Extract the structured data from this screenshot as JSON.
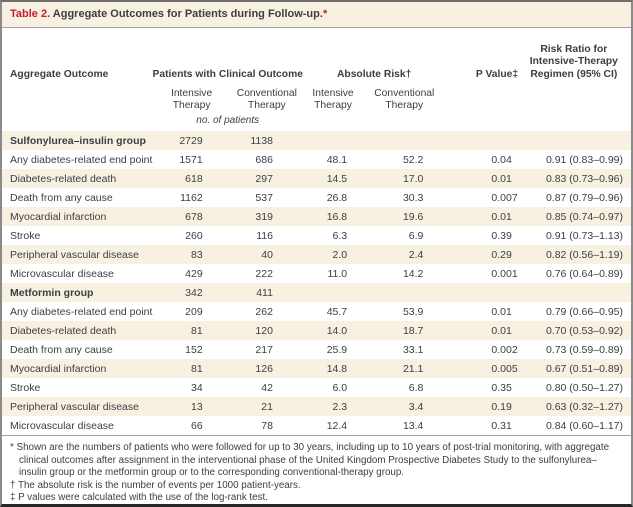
{
  "colors": {
    "cream": "#f8f1e1",
    "text": "#3b3e42",
    "accent-red": "#bf2032",
    "border-gray": "#8a8a8a",
    "rule-gray": "#a0a0a0",
    "border-dark": "#262626"
  },
  "table": {
    "title_label": "Table 2.",
    "title_text": " Aggregate Outcomes for Patients during Follow-up.",
    "title_marker": "*",
    "columns": {
      "outcome": "Aggregate Outcome",
      "patients_group": "Patients with Clinical Outcome",
      "risk_group": "Absolute Risk†",
      "pvalue": "P Value‡",
      "risk_ratio": "Risk Ratio for Intensive-Therapy Regimen (95% CI)",
      "sub_intensive": "Intensive Therapy",
      "sub_conventional": "Conventional Therapy",
      "units_note": "no. of patients"
    },
    "rows": [
      {
        "label": "Sulfonylurea–insulin group",
        "group": true,
        "patients_intensive": "2729",
        "patients_conventional": "1138",
        "risk_intensive": "",
        "risk_conventional": "",
        "p_value": "",
        "risk_ratio": ""
      },
      {
        "label": "Any diabetes-related end point",
        "group": false,
        "patients_intensive": "1571",
        "patients_conventional": "686",
        "risk_intensive": "48.1",
        "risk_conventional": "52.2",
        "p_value": "0.04",
        "risk_ratio": "0.91 (0.83–0.99)"
      },
      {
        "label": "Diabetes-related death",
        "group": false,
        "patients_intensive": "618",
        "patients_conventional": "297",
        "risk_intensive": "14.5",
        "risk_conventional": "17.0",
        "p_value": "0.01",
        "risk_ratio": "0.83 (0.73–0.96)"
      },
      {
        "label": "Death from any cause",
        "group": false,
        "patients_intensive": "1162",
        "patients_conventional": "537",
        "risk_intensive": "26.8",
        "risk_conventional": "30.3",
        "p_value": "0.007",
        "risk_ratio": "0.87 (0.79–0.96)"
      },
      {
        "label": "Myocardial infarction",
        "group": false,
        "patients_intensive": "678",
        "patients_conventional": "319",
        "risk_intensive": "16.8",
        "risk_conventional": "19.6",
        "p_value": "0.01",
        "risk_ratio": "0.85 (0.74–0.97)"
      },
      {
        "label": "Stroke",
        "group": false,
        "patients_intensive": "260",
        "patients_conventional": "116",
        "risk_intensive": "6.3",
        "risk_conventional": "6.9",
        "p_value": "0.39",
        "risk_ratio": "0.91 (0.73–1.13)"
      },
      {
        "label": "Peripheral vascular disease",
        "group": false,
        "patients_intensive": "83",
        "patients_conventional": "40",
        "risk_intensive": "2.0",
        "risk_conventional": "2.4",
        "p_value": "0.29",
        "risk_ratio": "0.82 (0.56–1.19)"
      },
      {
        "label": "Microvascular disease",
        "group": false,
        "patients_intensive": "429",
        "patients_conventional": "222",
        "risk_intensive": "11.0",
        "risk_conventional": "14.2",
        "p_value": "0.001",
        "risk_ratio": "0.76 (0.64–0.89)"
      },
      {
        "label": "Metformin group",
        "group": true,
        "patients_intensive": "342",
        "patients_conventional": "411",
        "risk_intensive": "",
        "risk_conventional": "",
        "p_value": "",
        "risk_ratio": ""
      },
      {
        "label": "Any diabetes-related end point",
        "group": false,
        "patients_intensive": "209",
        "patients_conventional": "262",
        "risk_intensive": "45.7",
        "risk_conventional": "53.9",
        "p_value": "0.01",
        "risk_ratio": "0.79 (0.66–0.95)"
      },
      {
        "label": "Diabetes-related death",
        "group": false,
        "patients_intensive": "81",
        "patients_conventional": "120",
        "risk_intensive": "14.0",
        "risk_conventional": "18.7",
        "p_value": "0.01",
        "risk_ratio": "0.70 (0.53–0.92)"
      },
      {
        "label": "Death from any cause",
        "group": false,
        "patients_intensive": "152",
        "patients_conventional": "217",
        "risk_intensive": "25.9",
        "risk_conventional": "33.1",
        "p_value": "0.002",
        "risk_ratio": "0.73 (0.59–0.89)"
      },
      {
        "label": "Myocardial infarction",
        "group": false,
        "patients_intensive": "81",
        "patients_conventional": "126",
        "risk_intensive": "14.8",
        "risk_conventional": "21.1",
        "p_value": "0.005",
        "risk_ratio": "0.67 (0.51–0.89)"
      },
      {
        "label": "Stroke",
        "group": false,
        "patients_intensive": "34",
        "patients_conventional": "42",
        "risk_intensive": "6.0",
        "risk_conventional": "6.8",
        "p_value": "0.35",
        "risk_ratio": "0.80 (0.50–1.27)"
      },
      {
        "label": "Peripheral vascular disease",
        "group": false,
        "patients_intensive": "13",
        "patients_conventional": "21",
        "risk_intensive": "2.3",
        "risk_conventional": "3.4",
        "p_value": "0.19",
        "risk_ratio": "0.63 (0.32–1.27)"
      },
      {
        "label": "Microvascular disease",
        "group": false,
        "patients_intensive": "66",
        "patients_conventional": "78",
        "risk_intensive": "12.4",
        "risk_conventional": "13.4",
        "p_value": "0.31",
        "risk_ratio": "0.84 (0.60–1.17)"
      }
    ]
  },
  "footnotes": [
    {
      "marker": "*",
      "text": "Shown are the numbers of patients who were followed for up to 30 years, including up to 10 years of post-trial monitoring, with aggregate clinical outcomes after assignment in the interventional phase of the United Kingdom Prospective Diabetes Study to the sulfonylurea–insulin group or the metformin group or to the corresponding conventional-therapy group."
    },
    {
      "marker": "†",
      "text": "The absolute risk is the number of events per 1000 patient-years."
    },
    {
      "marker": "‡",
      "text": "P values were calculated with the use of the log-rank test."
    }
  ]
}
